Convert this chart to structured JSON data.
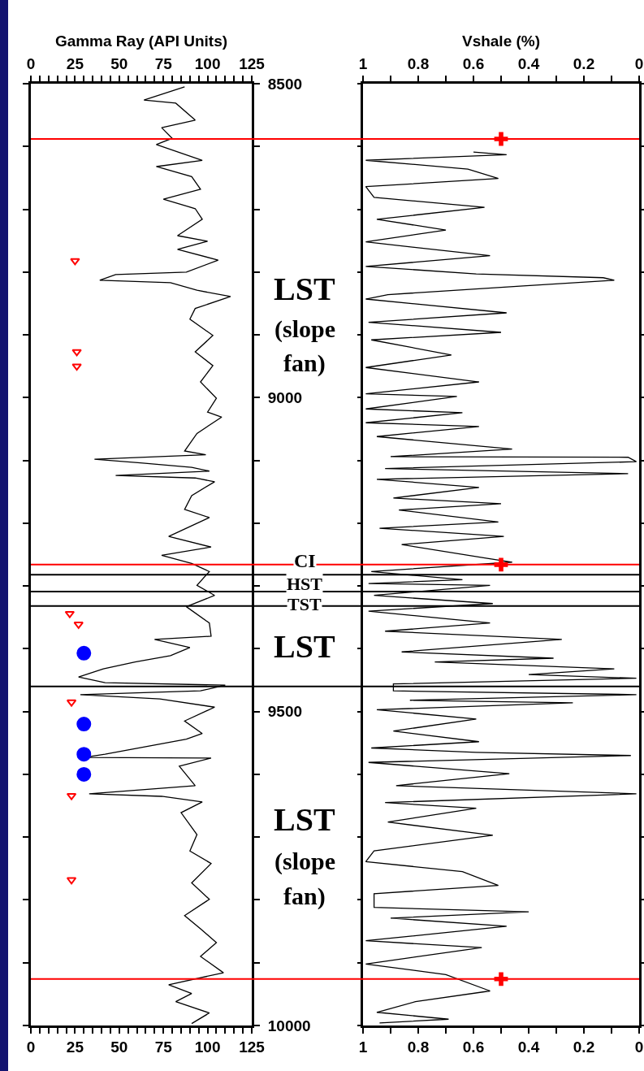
{
  "chart_data": [
    {
      "type": "line",
      "x2label": "Gamma Ray (API Units)",
      "series": [
        {
          "type": "line",
          "color": "#000000",
          "marker": "none",
          "line_style": "solid",
          "x": [
            87,
            64,
            82,
            93,
            74,
            80,
            71,
            97,
            71,
            91,
            96,
            75,
            93,
            97,
            83,
            100,
            83,
            106,
            88,
            48,
            39,
            79,
            94,
            113,
            93,
            90,
            103,
            93,
            103,
            96,
            105,
            100,
            108,
            94,
            87,
            99,
            36,
            62,
            91,
            101,
            48,
            93,
            104,
            91,
            87,
            101,
            78,
            102,
            74,
            91,
            101,
            94,
            104,
            88,
            101,
            102,
            70,
            90,
            79,
            59,
            41,
            27,
            42,
            110,
            96,
            28,
            73,
            104,
            87,
            97,
            88,
            42,
            30,
            102,
            84,
            93,
            33,
            74,
            97,
            85,
            94,
            90,
            102,
            91,
            101,
            87,
            96,
            105,
            96,
            109,
            78,
            91,
            82,
            101,
            91
          ],
          "values": [
            8505,
            8526,
            8531,
            8558,
            8570,
            8587,
            8597,
            8622,
            8632,
            8648,
            8668,
            8684,
            8699,
            8716,
            8742,
            8751,
            8764,
            8781,
            8800,
            8804,
            8813,
            8817,
            8829,
            8839,
            8858,
            8875,
            8901,
            8927,
            8949,
            8975,
            9001,
            9023,
            9031,
            9057,
            9085,
            9091,
            9098,
            9104,
            9111,
            9117,
            9124,
            9128,
            9134,
            9156,
            9178,
            9191,
            9221,
            9238,
            9251,
            9264,
            9277,
            9299,
            9315,
            9333,
            9359,
            9380,
            9385,
            9398,
            9411,
            9421,
            9432,
            9445,
            9454,
            9458,
            9467,
            9473,
            9480,
            9493,
            9515,
            9535,
            9544,
            9568,
            9573,
            9574,
            9587,
            9618,
            9631,
            9635,
            9644,
            9661,
            9696,
            9722,
            9742,
            9773,
            9799,
            9825,
            9846,
            9868,
            9890,
            9916,
            9935,
            9949,
            9962,
            9980,
            9997
          ]
        },
        {
          "type": "scatter",
          "color": "#ff0000",
          "marker": "triangle",
          "x": [
            25,
            26,
            26,
            22,
            27,
            23,
            23,
            23
          ],
          "values": [
            8782,
            8927,
            8950,
            9344,
            9361,
            9485,
            9634,
            9768
          ]
        },
        {
          "type": "scatter",
          "color": "#0000ff",
          "marker": "circle",
          "x": [
            30,
            30,
            30,
            30
          ],
          "values": [
            9407,
            9520,
            9568,
            9600
          ]
        }
      ],
      "xlim": [
        0,
        125
      ],
      "xticks": [
        0,
        {
          "value": 5,
          "label": null
        },
        {
          "value": 10,
          "label": null
        },
        {
          "value": 15,
          "label": null
        },
        {
          "value": 20,
          "label": null
        },
        25,
        {
          "value": 30,
          "label": null
        },
        {
          "value": 35,
          "label": null
        },
        {
          "value": 40,
          "label": null
        },
        {
          "value": 45,
          "label": null
        },
        50,
        {
          "value": 55,
          "label": null
        },
        {
          "value": 60,
          "label": null
        },
        {
          "value": 65,
          "label": null
        },
        {
          "value": 70,
          "label": null
        },
        75,
        {
          "value": 80,
          "label": null
        },
        {
          "value": 85,
          "label": null
        },
        {
          "value": 90,
          "label": null
        },
        {
          "value": 95,
          "label": null
        },
        100,
        {
          "value": 105,
          "label": null
        },
        {
          "value": 110,
          "label": null
        },
        {
          "value": 115,
          "label": null
        },
        {
          "value": 120,
          "label": null
        },
        125
      ],
      "x2lim": [
        0,
        125
      ],
      "x2ticks": [
        0,
        {
          "value": 5,
          "label": null
        },
        {
          "value": 10,
          "label": null
        },
        {
          "value": 15,
          "label": null
        },
        {
          "value": 20,
          "label": null
        },
        25,
        {
          "value": 30,
          "label": null
        },
        {
          "value": 35,
          "label": null
        },
        {
          "value": 40,
          "label": null
        },
        {
          "value": 45,
          "label": null
        },
        50,
        {
          "value": 55,
          "label": null
        },
        {
          "value": 60,
          "label": null
        },
        {
          "value": 65,
          "label": null
        },
        {
          "value": 70,
          "label": null
        },
        75,
        {
          "value": 80,
          "label": null
        },
        {
          "value": 85,
          "label": null
        },
        {
          "value": 90,
          "label": null
        },
        {
          "value": 95,
          "label": null
        },
        100,
        {
          "value": 105,
          "label": null
        },
        {
          "value": 110,
          "label": null
        },
        {
          "value": 115,
          "label": null
        },
        {
          "value": 120,
          "label": null
        },
        125
      ],
      "ylim": [
        10000,
        8500
      ],
      "yticks": [
        8500,
        {
          "value": 8600,
          "label": null
        },
        {
          "value": 8700,
          "label": null
        },
        {
          "value": 8800,
          "label": null
        },
        {
          "value": 8900,
          "label": null
        },
        9000,
        {
          "value": 9100,
          "label": null
        },
        {
          "value": 9200,
          "label": null
        },
        {
          "value": 9300,
          "label": null
        },
        {
          "value": 9400,
          "label": null
        },
        9500,
        {
          "value": 9600,
          "label": null
        },
        {
          "value": 9700,
          "label": null
        },
        {
          "value": 9800,
          "label": null
        },
        {
          "value": 9900,
          "label": null
        },
        10000
      ],
      "ref_lines": [
        {
          "axis": "y",
          "value": 8588,
          "color": "#ff0000"
        },
        {
          "axis": "y",
          "value": 9266,
          "color": "#ff0000"
        },
        {
          "axis": "y",
          "value": 9926,
          "color": "#ff0000"
        },
        {
          "axis": "y",
          "value": 9282,
          "color": "#000000"
        },
        {
          "axis": "y",
          "value": 9309,
          "color": "#000000"
        },
        {
          "axis": "y",
          "value": 9332,
          "color": "#000000"
        },
        {
          "axis": "y",
          "value": 9460,
          "color": "#000000"
        }
      ],
      "annotations": [
        "LST",
        "(slope",
        "fan)",
        "CI",
        "HST",
        "TST",
        "LST",
        "LST",
        "(slope",
        "fan)"
      ]
    },
    {
      "type": "line",
      "x2label": "Vshale (%)",
      "series": [
        {
          "type": "line",
          "color": "#000000",
          "marker": "none",
          "line_style": "solid",
          "x": [
            0.6,
            0.48,
            0.99,
            0.62,
            0.51,
            0.99,
            0.96,
            0.56,
            0.95,
            0.7,
            0.99,
            0.54,
            0.99,
            0.59,
            0.13,
            0.09,
            0.42,
            0.91,
            0.99,
            0.48,
            0.98,
            0.5,
            0.97,
            0.68,
            0.99,
            0.58,
            0.99,
            0.66,
            0.99,
            0.64,
            0.99,
            0.58,
            0.95,
            0.46,
            0.9,
            0.04,
            0.01,
            0.92,
            0.04,
            0.95,
            0.58,
            0.89,
            0.5,
            0.87,
            0.51,
            0.94,
            0.49,
            0.86,
            0.55,
            0.46,
            0.97,
            0.64,
            0.98,
            0.54,
            0.96,
            0.53,
            0.98,
            0.54,
            0.92,
            0.28,
            0.86,
            0.31,
            0.74,
            0.09,
            0.4,
            0.01,
            0.89,
            0.89,
            0.01,
            0.83,
            0.24,
            0.95,
            0.59,
            0.89,
            0.58,
            0.97,
            0.59,
            0.03,
            0.98,
            0.47,
            0.88,
            0.01,
            0.92,
            0.59,
            0.91,
            0.53,
            0.96,
            0.99,
            0.64,
            0.51,
            0.96,
            0.96,
            0.4,
            0.9,
            0.48,
            0.99,
            0.57,
            0.99,
            0.7,
            0.54,
            0.81,
            0.95,
            0.69,
            0.94
          ],
          "values": [
            8609,
            8613,
            8622,
            8636,
            8651,
            8664,
            8681,
            8697,
            8716,
            8733,
            8752,
            8774,
            8791,
            8803,
            8809,
            8813,
            8822,
            8836,
            8843,
            8865,
            8880,
            8896,
            8908,
            8932,
            8952,
            8975,
            8994,
            8998,
            9018,
            9024,
            9040,
            9046,
            9062,
            9082,
            9094,
            9095,
            9102,
            9113,
            9121,
            9130,
            9143,
            9160,
            9169,
            9179,
            9198,
            9208,
            9221,
            9234,
            9256,
            9262,
            9277,
            9290,
            9296,
            9299,
            9315,
            9328,
            9340,
            9359,
            9372,
            9385,
            9405,
            9415,
            9421,
            9432,
            9441,
            9447,
            9456,
            9467,
            9473,
            9482,
            9486,
            9497,
            9512,
            9531,
            9548,
            9558,
            9565,
            9570,
            9581,
            9599,
            9618,
            9631,
            9645,
            9654,
            9676,
            9697,
            9722,
            9739,
            9755,
            9777,
            9790,
            9812,
            9819,
            9829,
            9842,
            9865,
            9876,
            9902,
            9919,
            9945,
            9962,
            9979,
            9990,
            9996
          ]
        },
        {
          "type": "scatter",
          "color": "#ff0000",
          "marker": "cross",
          "x": [
            0.5,
            0.5,
            0.5
          ],
          "values": [
            8588,
            9266,
            9926
          ]
        }
      ],
      "xlim": [
        1,
        0
      ],
      "xticks": [
        1,
        {
          "value": 0.9,
          "label": null
        },
        0.8,
        {
          "value": 0.7,
          "label": null
        },
        0.6,
        {
          "value": 0.5,
          "label": null
        },
        0.4,
        {
          "value": 0.3,
          "label": null
        },
        0.2,
        {
          "value": 0.1,
          "label": null
        },
        0
      ],
      "x2lim": [
        1,
        0
      ],
      "x2ticks": [
        1,
        {
          "value": 0.9,
          "label": null
        },
        0.8,
        {
          "value": 0.7,
          "label": null
        },
        0.6,
        {
          "value": 0.5,
          "label": null
        },
        0.4,
        {
          "value": 0.3,
          "label": null
        },
        0.2,
        {
          "value": 0.1,
          "label": null
        },
        0
      ],
      "ylim": [
        10000,
        8500
      ],
      "yticks": [
        8500,
        {
          "value": 8600,
          "label": null
        },
        {
          "value": 8700,
          "label": null
        },
        {
          "value": 8800,
          "label": null
        },
        {
          "value": 8900,
          "label": null
        },
        9000,
        {
          "value": 9100,
          "label": null
        },
        {
          "value": 9200,
          "label": null
        },
        {
          "value": 9300,
          "label": null
        },
        {
          "value": 9400,
          "label": null
        },
        9500,
        {
          "value": 9600,
          "label": null
        },
        {
          "value": 9700,
          "label": null
        },
        {
          "value": 9800,
          "label": null
        },
        {
          "value": 9900,
          "label": null
        },
        10000
      ],
      "tick_labels": "x",
      "ref_lines": [
        {
          "axis": "y",
          "value": 8588,
          "color": "#ff0000"
        },
        {
          "axis": "y",
          "value": 9266,
          "color": "#ff0000"
        },
        {
          "axis": "y",
          "value": 9926,
          "color": "#ff0000"
        },
        {
          "axis": "y",
          "value": 9282,
          "color": "#000000"
        },
        {
          "axis": "y",
          "value": 9309,
          "color": "#000000"
        },
        {
          "axis": "y",
          "value": 9332,
          "color": "#000000"
        },
        {
          "axis": "y",
          "value": 9460,
          "color": "#000000"
        }
      ]
    }
  ]
}
